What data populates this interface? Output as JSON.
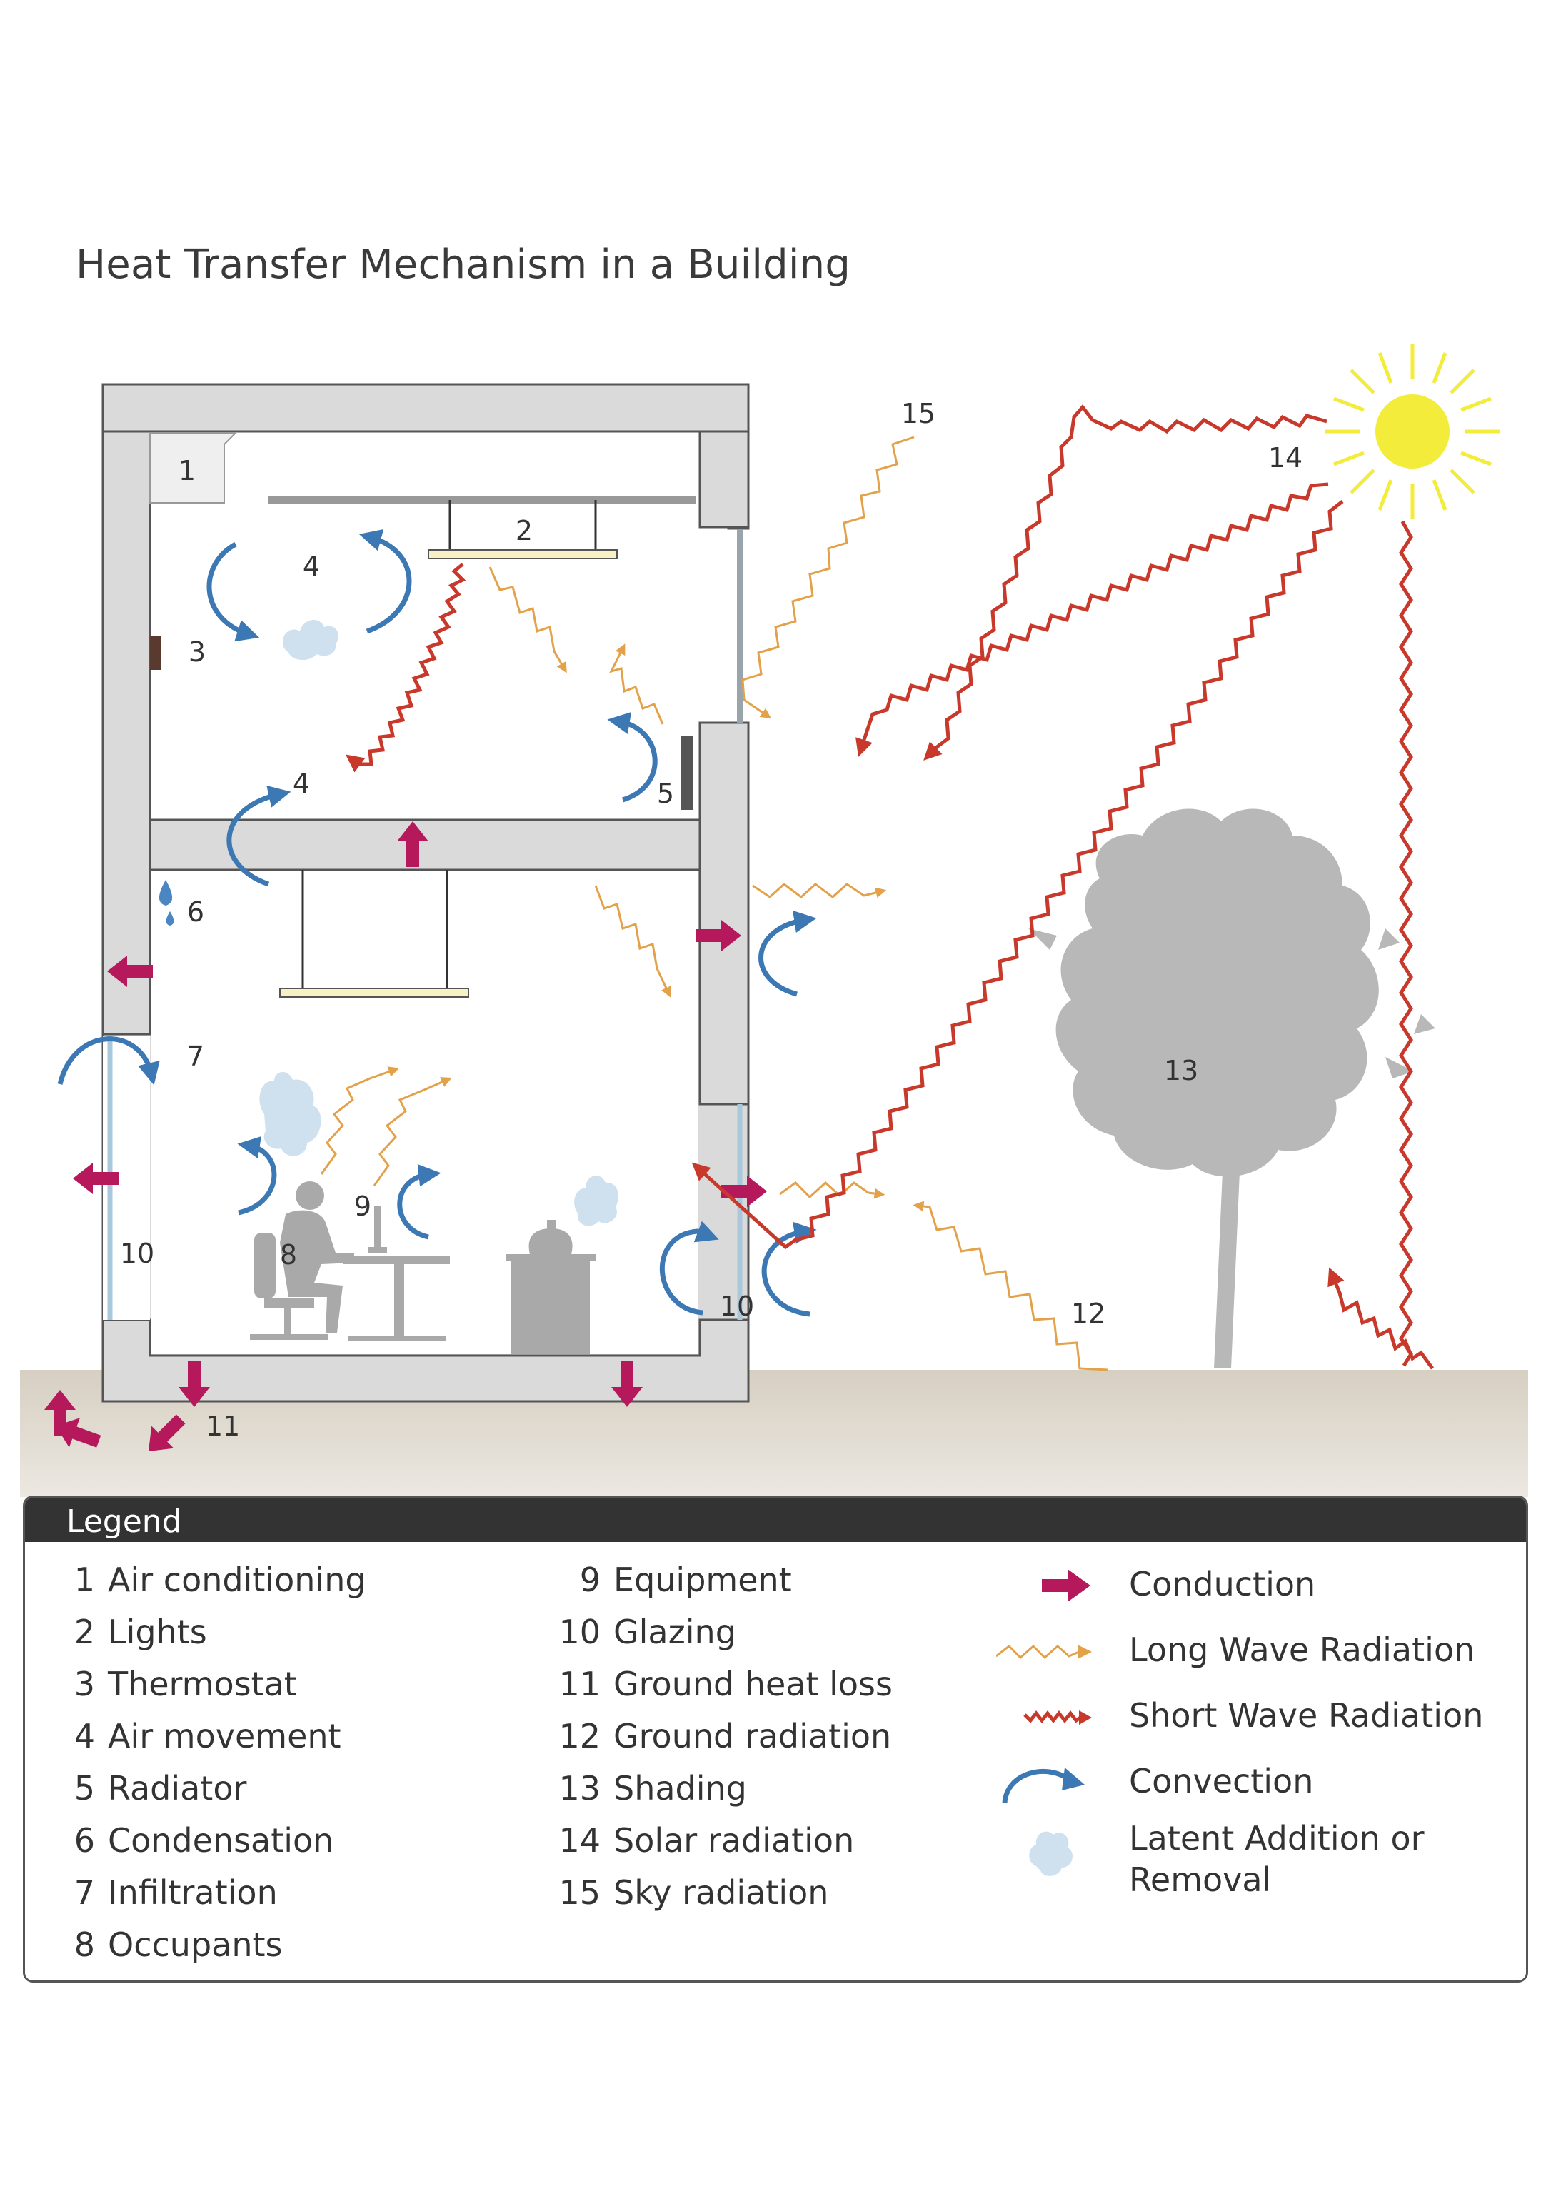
{
  "title": "Heat Transfer Mechanism in a Building",
  "diagram_labels": {
    "n1": "1",
    "n2": "2",
    "n3": "3",
    "n4a": "4",
    "n4b": "4",
    "n5": "5",
    "n6": "6",
    "n7": "7",
    "n8": "8",
    "n9": "9",
    "n10a": "10",
    "n10b": "10",
    "n11": "11",
    "n12": "12",
    "n13": "13",
    "n14": "14",
    "n15": "15"
  },
  "legend": {
    "heading": "Legend",
    "items": [
      {
        "num": "1",
        "label": "Air conditioning"
      },
      {
        "num": "2",
        "label": "Lights"
      },
      {
        "num": "3",
        "label": "Thermostat"
      },
      {
        "num": "4",
        "label": "Air movement"
      },
      {
        "num": "5",
        "label": "Radiator"
      },
      {
        "num": "6",
        "label": "Condensation"
      },
      {
        "num": "7",
        "label": "Infiltration"
      },
      {
        "num": "8",
        "label": "Occupants"
      },
      {
        "num": "9",
        "label": "Equipment"
      },
      {
        "num": "10",
        "label": "Glazing"
      },
      {
        "num": "11",
        "label": "Ground heat loss"
      },
      {
        "num": "12",
        "label": "Ground radiation"
      },
      {
        "num": "13",
        "label": "Shading"
      },
      {
        "num": "14",
        "label": "Solar radiation"
      },
      {
        "num": "15",
        "label": "Sky radiation"
      }
    ],
    "symbols": [
      {
        "label": "Conduction",
        "icon": "conduction-arrow-icon"
      },
      {
        "label": "Long Wave Radiation",
        "icon": "long-wave-zigzag-icon"
      },
      {
        "label": "Short Wave Radiation",
        "icon": "short-wave-zigzag-icon"
      },
      {
        "label": "Convection",
        "icon": "convection-curve-icon"
      },
      {
        "label": "Latent Addition or Removal",
        "icon": "steam-cloud-icon"
      }
    ]
  },
  "colors": {
    "conduction": "#b5195b",
    "long_wave": "#e3a24a",
    "short_wave": "#c8392b",
    "convection": "#3c78b4",
    "wall": "#dadada",
    "wall_stroke": "#555555",
    "ground": "#d6cfc2",
    "sun": "#f3ec3b",
    "tree": "#b8b8b8"
  }
}
